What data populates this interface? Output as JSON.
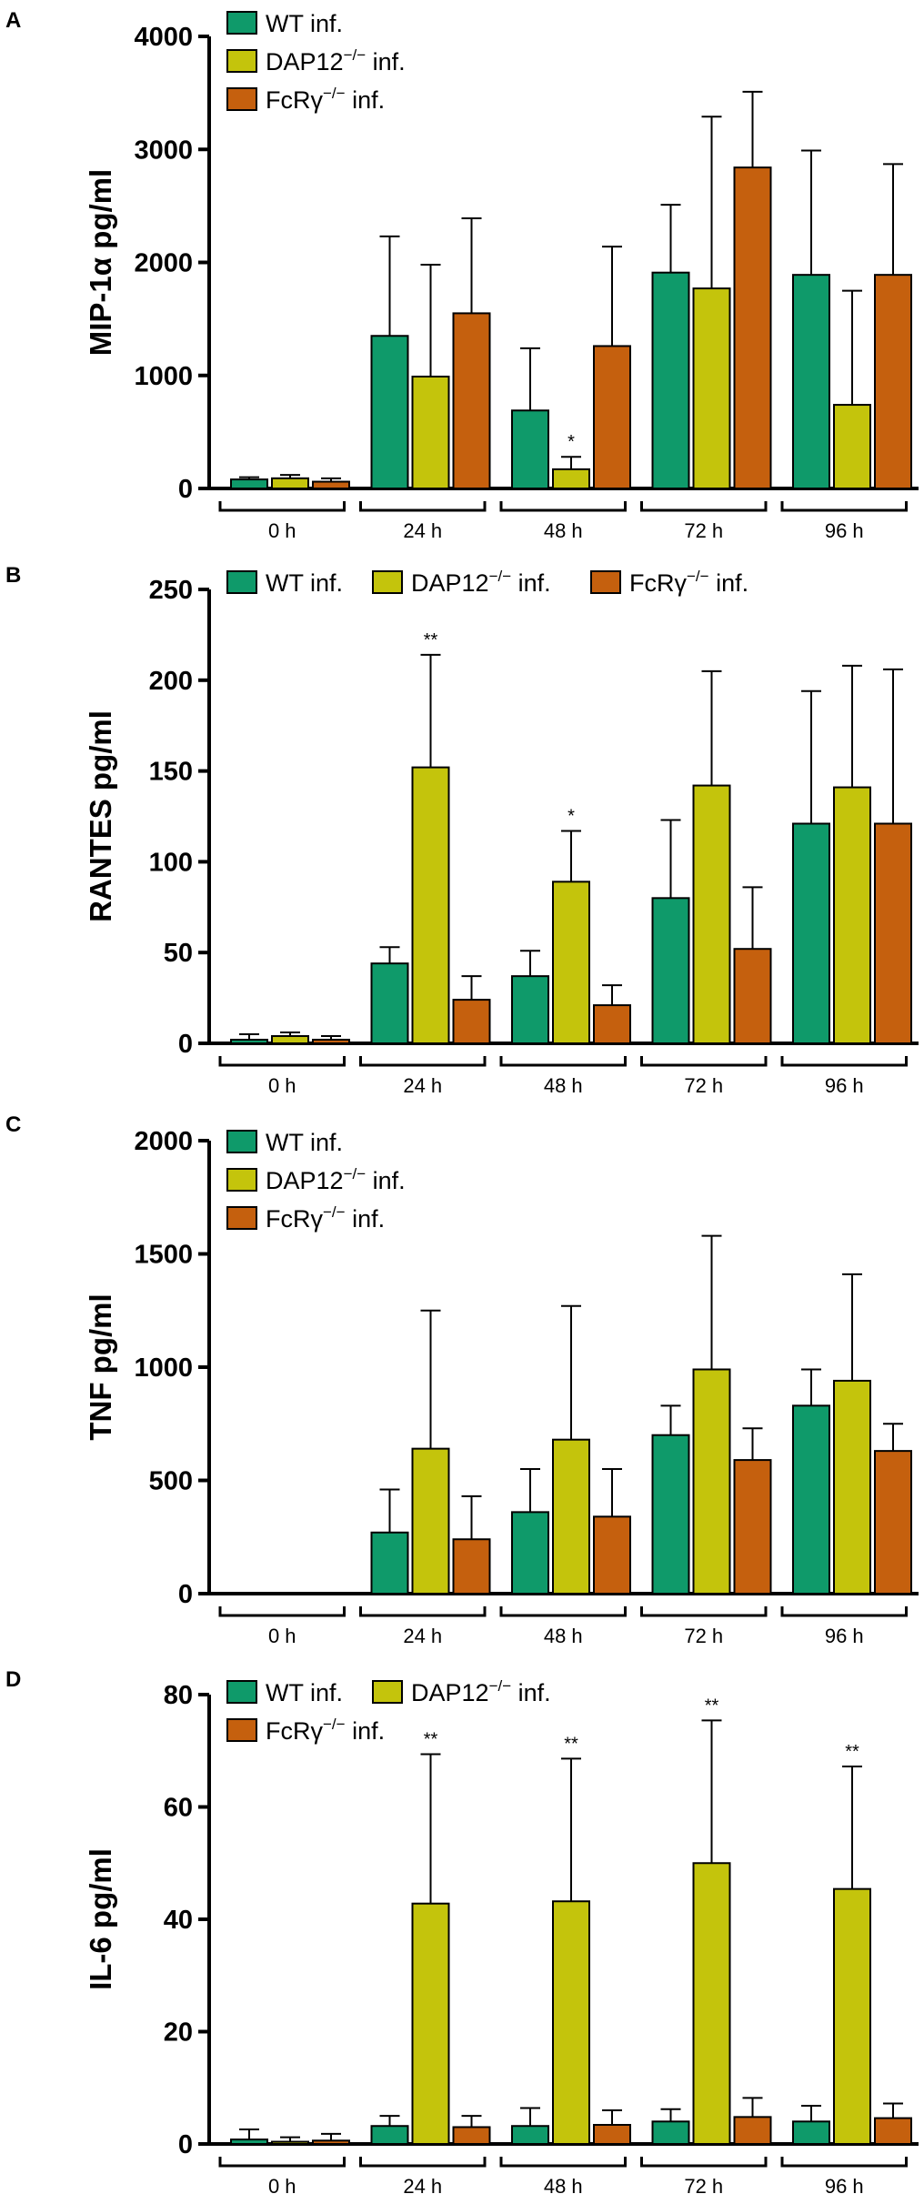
{
  "series_colors": {
    "WT inf.": "#0f9a6a",
    "DAP12-/- inf.": "#c4c40c",
    "FcRγ-/- inf.": "#c5600e"
  },
  "chart_data": [
    {
      "type": "bar",
      "panel": "A",
      "ylabel": "MIP-1α pg/ml",
      "ylim": [
        0,
        4000
      ],
      "yticks": [
        "0",
        "1000",
        "2000",
        "3000",
        "4000"
      ],
      "categories": [
        "0 h",
        "24 h",
        "48 h",
        "72 h",
        "96 h"
      ],
      "legend": [
        {
          "key": "WT inf.",
          "name": "WT inf.",
          "base": "WT inf.",
          "sup": ""
        },
        {
          "key": "DAP12-/- inf.",
          "name": "DAP12−/− inf.",
          "base": "DAP12",
          "sup": "−/−",
          "suffix": " inf."
        },
        {
          "key": "FcRγ-/- inf.",
          "name": "FcRγ−/− inf.",
          "base": "FcRγ",
          "sup": "−/−",
          "suffix": " inf."
        }
      ],
      "legend_layout": "stacked",
      "series": [
        {
          "name": "WT inf.",
          "values": [
            80,
            1350,
            690,
            1910,
            1890
          ],
          "errors": [
            20,
            880,
            550,
            600,
            1100
          ]
        },
        {
          "name": "DAP12-/- inf.",
          "values": [
            90,
            990,
            170,
            1770,
            740
          ],
          "errors": [
            30,
            990,
            110,
            1520,
            1010
          ]
        },
        {
          "name": "FcRγ-/- inf.",
          "values": [
            60,
            1550,
            1260,
            2840,
            1890
          ],
          "errors": [
            30,
            840,
            880,
            670,
            980
          ]
        }
      ],
      "annotations": [
        {
          "group": 2,
          "series": 1,
          "text": "*"
        }
      ]
    },
    {
      "type": "bar",
      "panel": "B",
      "ylabel": "RANTES pg/ml",
      "ylim": [
        0,
        250
      ],
      "yticks": [
        "0",
        "50",
        "100",
        "150",
        "200",
        "250"
      ],
      "categories": [
        "0 h",
        "24 h",
        "48 h",
        "72 h",
        "96 h"
      ],
      "legend": [
        {
          "key": "WT inf.",
          "name": "WT inf.",
          "base": "WT inf.",
          "sup": ""
        },
        {
          "key": "DAP12-/- inf.",
          "name": "DAP12−/− inf.",
          "base": "DAP12",
          "sup": "−/−",
          "suffix": " inf."
        },
        {
          "key": "FcRγ-/- inf.",
          "name": "FcRγ−/− inf.",
          "base": "FcRγ",
          "sup": "−/−",
          "suffix": " inf."
        }
      ],
      "legend_layout": "row",
      "series": [
        {
          "name": "WT inf.",
          "values": [
            2,
            44,
            37,
            80,
            121
          ],
          "errors": [
            3,
            9,
            14,
            43,
            73
          ]
        },
        {
          "name": "DAP12-/- inf.",
          "values": [
            4,
            152,
            89,
            142,
            141
          ],
          "errors": [
            2,
            62,
            28,
            63,
            67
          ]
        },
        {
          "name": "FcRγ-/- inf.",
          "values": [
            2,
            24,
            21,
            52,
            121
          ],
          "errors": [
            2,
            13,
            11,
            34,
            85
          ]
        }
      ],
      "annotations": [
        {
          "group": 1,
          "series": 1,
          "text": "**"
        },
        {
          "group": 2,
          "series": 1,
          "text": "*"
        }
      ]
    },
    {
      "type": "bar",
      "panel": "C",
      "ylabel": "TNF pg/ml",
      "ylim": [
        0,
        2000
      ],
      "yticks": [
        "0",
        "500",
        "1000",
        "1500",
        "2000"
      ],
      "categories": [
        "0 h",
        "24 h",
        "48 h",
        "72 h",
        "96 h"
      ],
      "legend": [
        {
          "key": "WT inf.",
          "name": "WT inf.",
          "base": "WT inf.",
          "sup": ""
        },
        {
          "key": "DAP12-/- inf.",
          "name": "DAP12−/− inf.",
          "base": "DAP12",
          "sup": "−/−",
          "suffix": " inf."
        },
        {
          "key": "FcRγ-/- inf.",
          "name": "FcRγ−/− inf.",
          "base": "FcRγ",
          "sup": "−/−",
          "suffix": " inf."
        }
      ],
      "legend_layout": "stacked",
      "series": [
        {
          "name": "WT inf.",
          "values": [
            0,
            270,
            360,
            700,
            830
          ],
          "errors": [
            0,
            190,
            190,
            130,
            160
          ]
        },
        {
          "name": "DAP12-/- inf.",
          "values": [
            0,
            640,
            680,
            990,
            940
          ],
          "errors": [
            0,
            610,
            590,
            590,
            470
          ]
        },
        {
          "name": "FcRγ-/- inf.",
          "values": [
            0,
            240,
            340,
            590,
            630
          ],
          "errors": [
            0,
            190,
            210,
            140,
            120
          ]
        }
      ],
      "annotations": []
    },
    {
      "type": "bar",
      "panel": "D",
      "ylabel": "IL-6 pg/ml",
      "ylim": [
        0,
        80
      ],
      "yticks": [
        "0",
        "20",
        "40",
        "60",
        "80"
      ],
      "categories": [
        "0 h",
        "24 h",
        "48 h",
        "72 h",
        "96 h"
      ],
      "legend": [
        {
          "key": "WT inf.",
          "name": "WT inf.",
          "base": "WT inf.",
          "sup": ""
        },
        {
          "key": "DAP12-/- inf.",
          "name": "DAP12−/− inf.",
          "base": "DAP12",
          "sup": "−/−",
          "suffix": " inf."
        },
        {
          "key": "FcRγ-/- inf.",
          "name": "FcRγ−/− inf.",
          "base": "FcRγ",
          "sup": "−/−",
          "suffix": " inf."
        }
      ],
      "legend_layout": "two-plus-one",
      "series": [
        {
          "name": "WT inf.",
          "values": [
            0.8,
            3.2,
            3.2,
            4.0,
            4.0
          ],
          "errors": [
            1.8,
            1.8,
            3.2,
            2.2,
            2.8
          ]
        },
        {
          "name": "DAP12-/- inf.",
          "values": [
            0.4,
            42.8,
            43.2,
            50.0,
            45.4
          ],
          "errors": [
            0.8,
            26.6,
            25.4,
            25.4,
            21.8
          ]
        },
        {
          "name": "FcRγ-/- inf.",
          "values": [
            0.6,
            3.0,
            3.4,
            4.8,
            4.6
          ],
          "errors": [
            1.2,
            2.0,
            2.6,
            3.4,
            2.6
          ]
        }
      ],
      "annotations": [
        {
          "group": 1,
          "series": 1,
          "text": "**"
        },
        {
          "group": 2,
          "series": 1,
          "text": "**"
        },
        {
          "group": 3,
          "series": 1,
          "text": "**"
        },
        {
          "group": 4,
          "series": 1,
          "text": "**"
        }
      ]
    }
  ]
}
